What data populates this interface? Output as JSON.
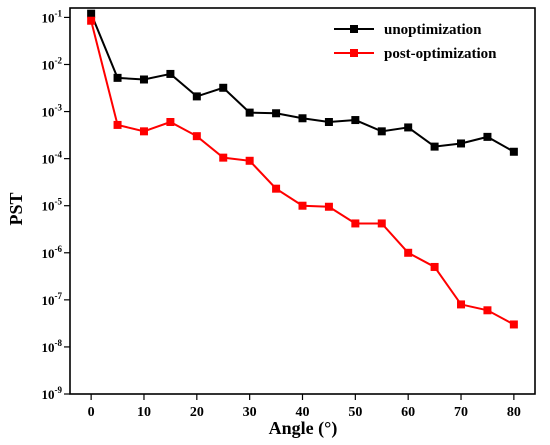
{
  "chart_data": {
    "type": "line",
    "xlabel": "Angle (°)",
    "ylabel": "PST",
    "xlim": [
      -4,
      84
    ],
    "ylim_log10": [
      -9,
      -0.8
    ],
    "y_scale": "log",
    "xticks": [
      0,
      10,
      20,
      30,
      40,
      50,
      60,
      70,
      80
    ],
    "yticks_exponents": [
      -1,
      -2,
      -3,
      -4,
      -5,
      -6,
      -7,
      -8,
      -9
    ],
    "ytick_base": "10",
    "legend_position": "top-right",
    "grid": false,
    "x": [
      0,
      5,
      10,
      15,
      20,
      25,
      30,
      35,
      40,
      45,
      50,
      55,
      60,
      65,
      70,
      75,
      80
    ],
    "series": [
      {
        "name": "unoptimization",
        "color": "#000000",
        "marker": "square",
        "values": [
          0.12,
          0.0052,
          0.0048,
          0.0063,
          0.0021,
          0.0032,
          0.00095,
          0.00092,
          0.00072,
          0.0006,
          0.00066,
          0.00038,
          0.00046,
          0.00018,
          0.00021,
          0.00029,
          0.00014
        ]
      },
      {
        "name": "post-optimization",
        "color": "#ff0000",
        "marker": "square",
        "values": [
          0.085,
          0.00052,
          0.00038,
          0.0006,
          0.0003,
          0.000105,
          9e-05,
          2.3e-05,
          1e-05,
          9.5e-06,
          4.2e-06,
          4.2e-06,
          1e-06,
          5e-07,
          8e-08,
          6e-08,
          3e-08
        ]
      }
    ]
  }
}
